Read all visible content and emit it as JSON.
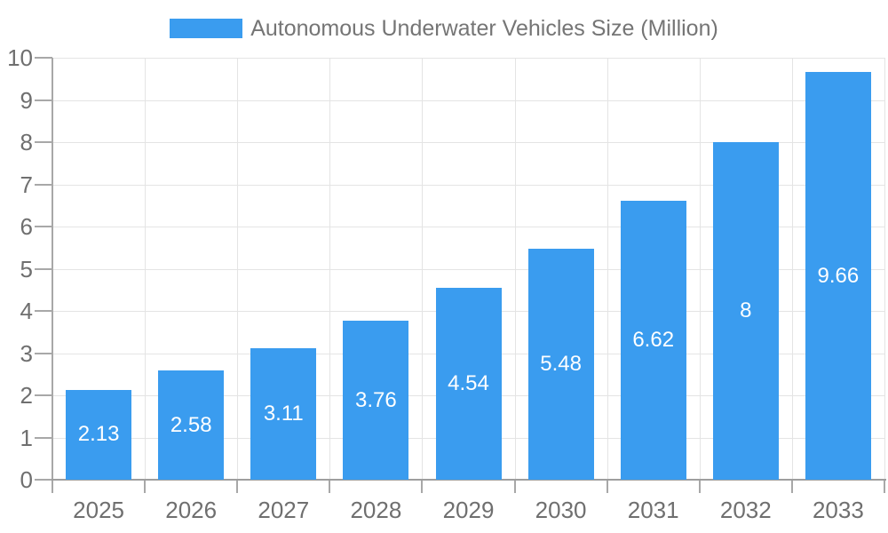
{
  "legend": {
    "label": "Autonomous Underwater Vehicles Size (Million)"
  },
  "colors": {
    "bar": "#3A9CEF",
    "grid": "#E4E4E4",
    "axis": "#A8A8A8",
    "baseline": "#9E9E9E",
    "tick_label": "#6F6F6F",
    "legend_text": "#757575",
    "value_label": "#FFFFFF",
    "background": "#FFFFFF"
  },
  "chart_data": {
    "type": "bar",
    "title": "Autonomous Underwater Vehicles Size (Million)",
    "categories": [
      "2025",
      "2026",
      "2027",
      "2028",
      "2029",
      "2030",
      "2031",
      "2032",
      "2033"
    ],
    "values": [
      2.13,
      2.58,
      3.11,
      3.76,
      4.54,
      5.48,
      6.62,
      8,
      9.66
    ],
    "value_labels": [
      "2.13",
      "2.58",
      "3.11",
      "3.76",
      "4.54",
      "5.48",
      "6.62",
      "8",
      "9.66"
    ],
    "xlabel": "",
    "ylabel": "",
    "ylim": [
      0,
      10
    ],
    "y_ticks": [
      0,
      1,
      2,
      3,
      4,
      5,
      6,
      7,
      8,
      9,
      10
    ],
    "grid": true,
    "legend_position": "top",
    "value_labels_position": "inside-center"
  }
}
